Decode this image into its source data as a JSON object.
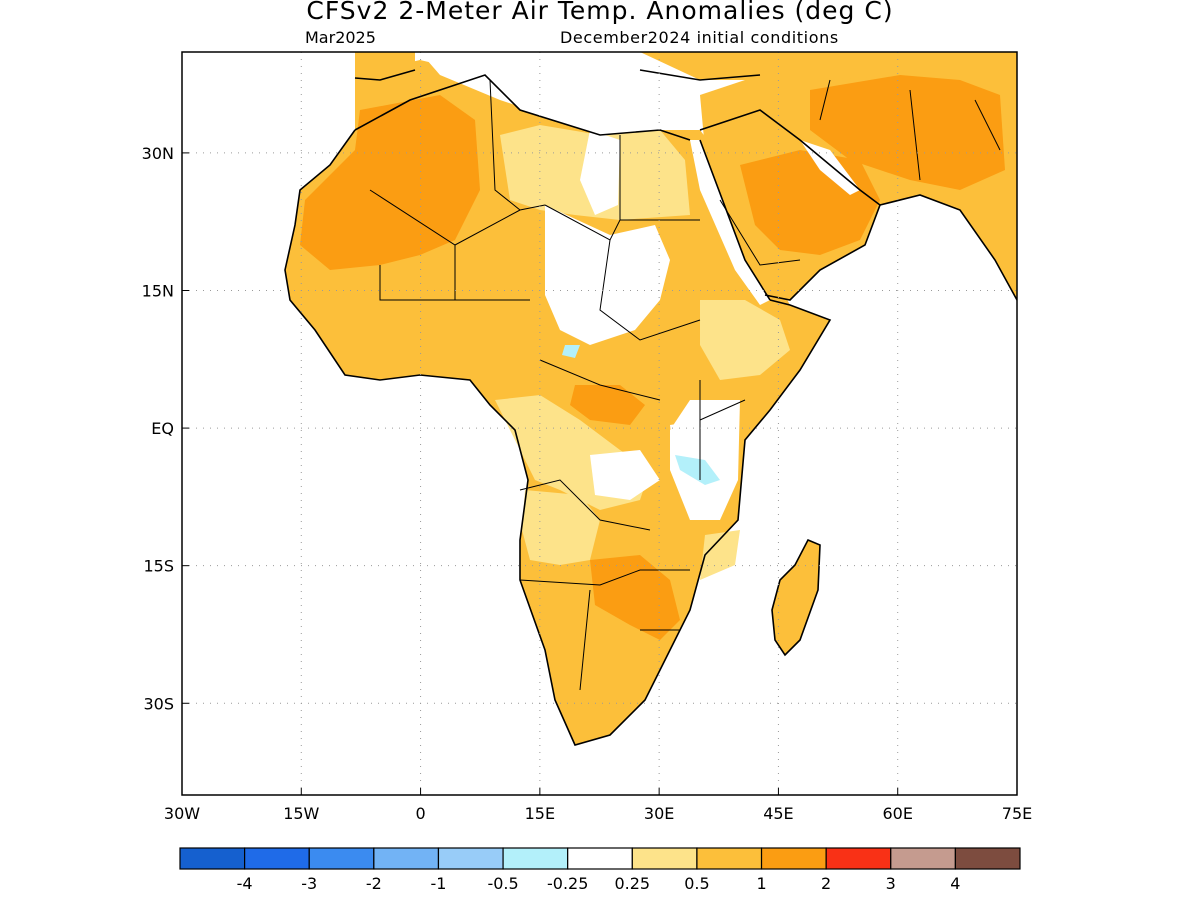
{
  "header": {
    "title": "CFSv2 2-Meter Air Temp. Anomalies (deg C)",
    "valid_month": "Mar2025",
    "init_conditions": "December2024 initial conditions"
  },
  "map": {
    "lon_range": [
      -30,
      75
    ],
    "lat_range": [
      -40,
      41
    ],
    "x_ticks": [
      {
        "lon": -30,
        "label": "30W"
      },
      {
        "lon": -15,
        "label": "15W"
      },
      {
        "lon": 0,
        "label": "0"
      },
      {
        "lon": 15,
        "label": "15E"
      },
      {
        "lon": 30,
        "label": "30E"
      },
      {
        "lon": 45,
        "label": "45E"
      },
      {
        "lon": 60,
        "label": "60E"
      },
      {
        "lon": 75,
        "label": "75E"
      }
    ],
    "y_ticks": [
      {
        "lat": 30,
        "label": "30N"
      },
      {
        "lat": 15,
        "label": "15N"
      },
      {
        "lat": 0,
        "label": "EQ"
      },
      {
        "lat": -15,
        "label": "15S"
      },
      {
        "lat": -30,
        "label": "30S"
      }
    ],
    "grid": true
  },
  "colorbar": {
    "colors": [
      "#1560cf",
      "#1f6be8",
      "#3b8bf0",
      "#72b3f5",
      "#98ccf8",
      "#b3f0fa",
      "#ffffff",
      "#fde38a",
      "#fcbf3a",
      "#fb9d12",
      "#f93116",
      "#c59b8f",
      "#7d4c3f"
    ],
    "labels": [
      "-4",
      "-3",
      "-2",
      "-1",
      "-0.5",
      "-0.25",
      "0.25",
      "0.5",
      "1",
      "2",
      "3",
      "4"
    ]
  },
  "colors": {
    "land_light": "#fde38a",
    "land_mid": "#fcbf3a",
    "land_warm": "#fb9d12",
    "neutral": "#ffffff",
    "cool": "#b3f0fa"
  }
}
